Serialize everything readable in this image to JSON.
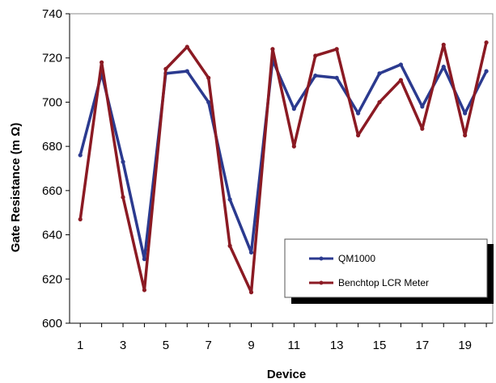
{
  "chart_data": {
    "type": "line",
    "title": "",
    "xlabel": "Device",
    "ylabel": "Gate Resistance (m Ω)",
    "x": [
      1,
      2,
      3,
      4,
      5,
      6,
      7,
      8,
      9,
      10,
      11,
      12,
      13,
      14,
      15,
      16,
      17,
      18,
      19,
      20
    ],
    "xticks": [
      "1",
      "3",
      "5",
      "7",
      "9",
      "11",
      "13",
      "15",
      "17",
      "19"
    ],
    "yticks": [
      "600",
      "620",
      "640",
      "660",
      "680",
      "700",
      "720",
      "740"
    ],
    "ylim": [
      600,
      740
    ],
    "xlim": [
      0.5,
      20.3
    ],
    "grid": false,
    "legend_position": "bottom-right",
    "series": [
      {
        "name": "QM1000",
        "color": "#2b3a8f",
        "values": [
          676,
          713,
          673,
          629,
          713,
          714,
          700,
          656,
          632,
          719,
          697,
          712,
          711,
          695,
          713,
          717,
          698,
          716,
          695,
          714
        ]
      },
      {
        "name": "Benchtop LCR Meter",
        "color": "#8b1a23",
        "values": [
          647,
          718,
          657,
          615,
          715,
          725,
          711,
          635,
          614,
          724,
          680,
          721,
          724,
          685,
          700,
          710,
          688,
          726,
          685,
          727
        ]
      }
    ]
  }
}
